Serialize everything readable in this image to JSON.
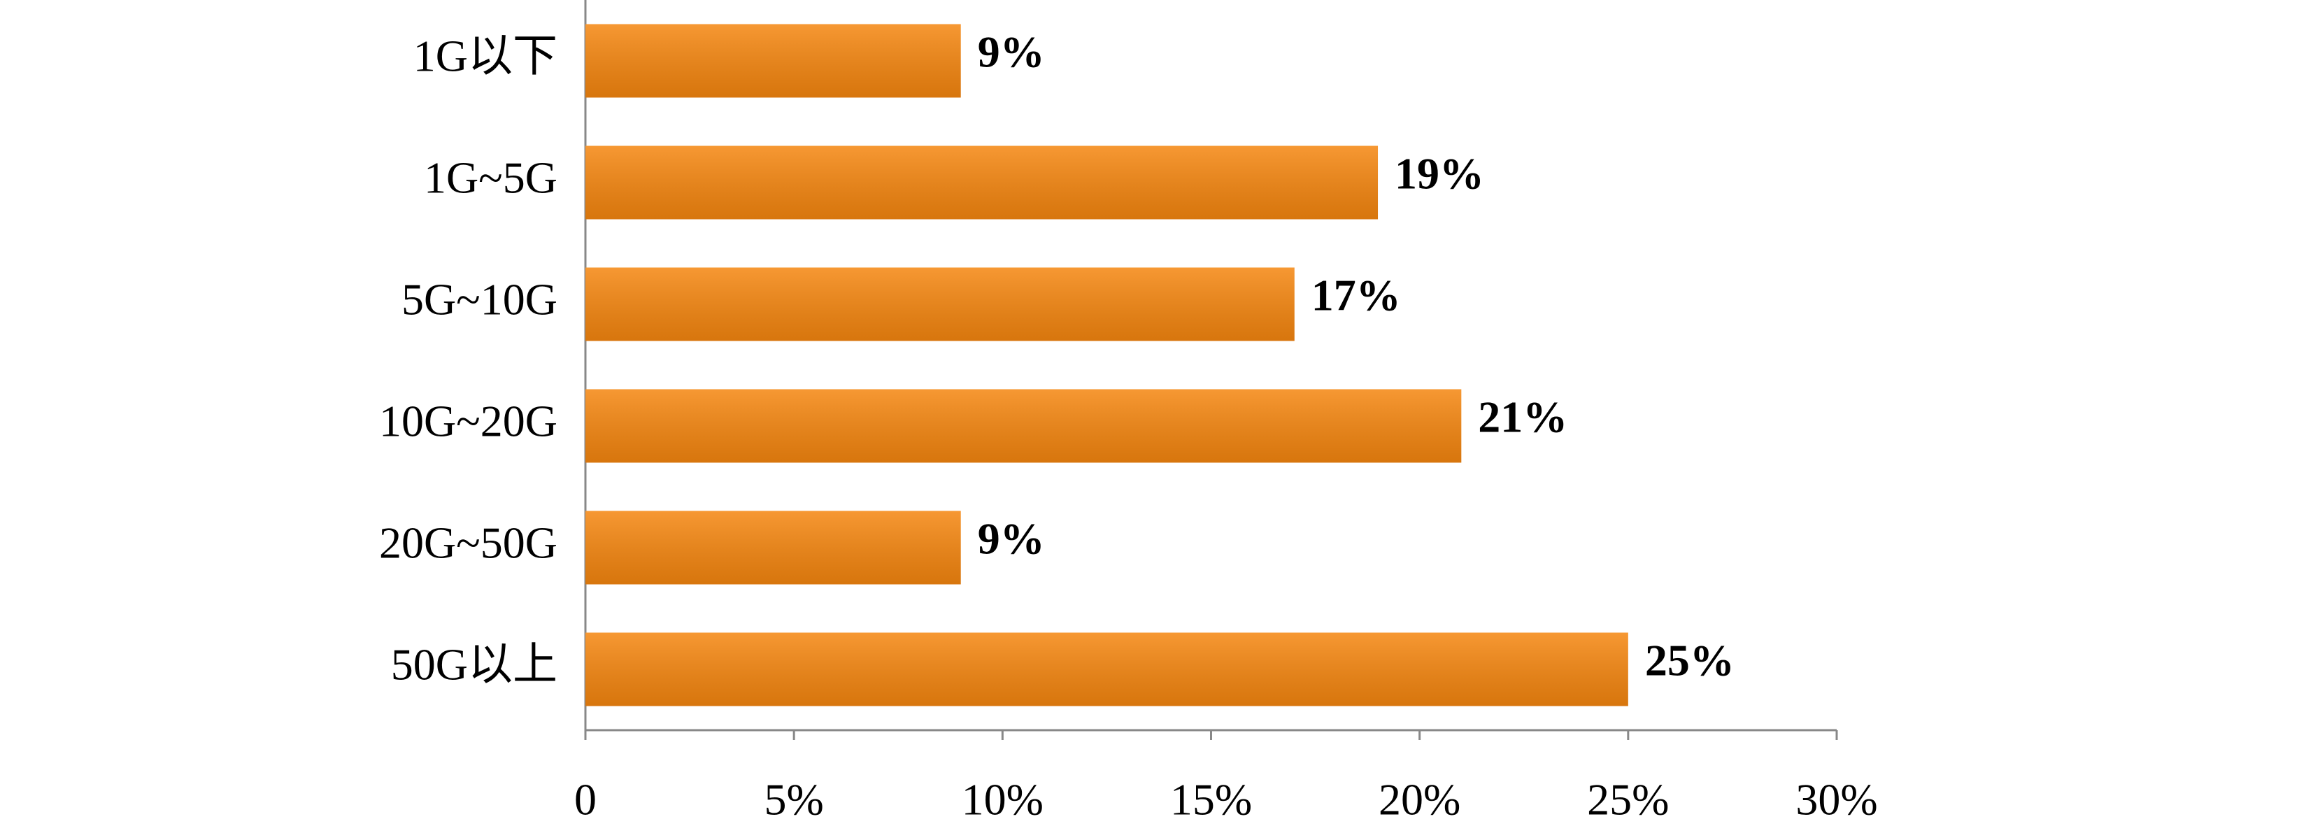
{
  "chart_data": {
    "type": "barh",
    "categories": [
      "1G以下",
      "1G~5G",
      "5G~10G",
      "10G~20G",
      "20G~50G",
      "50G以上"
    ],
    "values": [
      9,
      19,
      17,
      21,
      9,
      25
    ],
    "value_labels": [
      "9%",
      "19%",
      "17%",
      "21%",
      "9%",
      "25%"
    ],
    "color": "#f5860f",
    "xlim": [
      0,
      30
    ],
    "xticks": [
      0,
      {
        "value": 5,
        "label": "5%"
      },
      {
        "value": 10,
        "label": "10%"
      },
      {
        "value": 15,
        "label": "15%"
      },
      {
        "value": 20,
        "label": "20%"
      },
      {
        "value": 25,
        "label": "25%"
      },
      {
        "value": 30,
        "label": "30%"
      }
    ],
    "grid": false
  }
}
